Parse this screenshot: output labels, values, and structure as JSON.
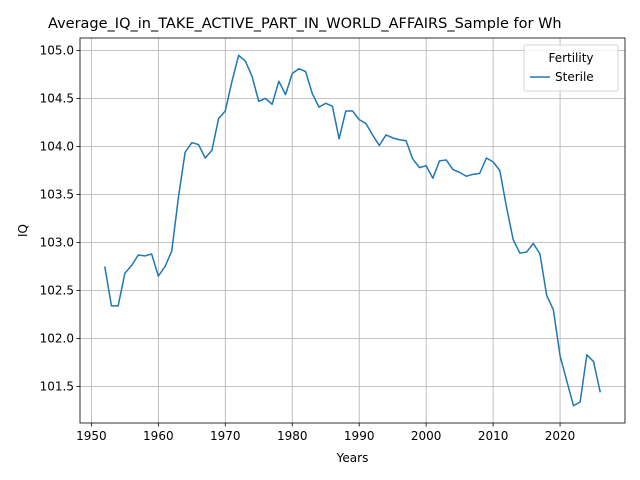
{
  "chart_data": {
    "type": "line",
    "title": "Average_IQ_in_TAKE_ACTIVE_PART_IN_WORLD_AFFAIRS_Sample for Wh",
    "xlabel": "Years",
    "ylabel": "IQ",
    "xlim": [
      1948.3,
      2029.7
    ],
    "ylim": [
      101.12,
      105.13
    ],
    "xticks": [
      1950,
      1960,
      1970,
      1980,
      1990,
      2000,
      2010,
      2020
    ],
    "yticks": [
      101.5,
      102.0,
      102.5,
      103.0,
      103.5,
      104.0,
      104.5,
      105.0
    ],
    "ytick_labels": [
      "101.5",
      "102.0",
      "102.5",
      "103.0",
      "103.5",
      "104.0",
      "104.5",
      "105.0"
    ],
    "grid": true,
    "legend": {
      "title": "Fertility",
      "placement": "top-right"
    },
    "series": [
      {
        "name": "Sterile",
        "color": "#1f77b4",
        "x": [
          1952,
          1953,
          1954,
          1955,
          1956,
          1957,
          1958,
          1959,
          1960,
          1961,
          1962,
          1963,
          1964,
          1965,
          1966,
          1967,
          1968,
          1969,
          1970,
          1971,
          1972,
          1973,
          1974,
          1975,
          1976,
          1977,
          1978,
          1979,
          1980,
          1981,
          1982,
          1983,
          1984,
          1985,
          1986,
          1987,
          1988,
          1989,
          1990,
          1991,
          1992,
          1993,
          1994,
          1995,
          1996,
          1997,
          1998,
          1999,
          2000,
          2001,
          2002,
          2003,
          2004,
          2005,
          2006,
          2007,
          2008,
          2009,
          2010,
          2011,
          2012,
          2013,
          2014,
          2015,
          2016,
          2017,
          2018,
          2019,
          2020,
          2021,
          2022,
          2023,
          2024,
          2025,
          2026
        ],
        "y": [
          102.75,
          102.34,
          102.34,
          102.68,
          102.76,
          102.87,
          102.86,
          102.88,
          102.65,
          102.75,
          102.91,
          103.47,
          103.94,
          104.04,
          104.02,
          103.88,
          103.96,
          104.29,
          104.37,
          104.68,
          104.95,
          104.89,
          104.73,
          104.47,
          104.5,
          104.44,
          104.68,
          104.54,
          104.76,
          104.81,
          104.78,
          104.55,
          104.41,
          104.45,
          104.42,
          104.08,
          104.37,
          104.37,
          104.28,
          104.24,
          104.12,
          104.01,
          104.12,
          104.09,
          104.07,
          104.06,
          103.87,
          103.78,
          103.8,
          103.67,
          103.85,
          103.86,
          103.76,
          103.73,
          103.69,
          103.71,
          103.72,
          103.88,
          103.84,
          103.75,
          103.37,
          103.03,
          102.89,
          102.9,
          102.99,
          102.88,
          102.45,
          102.3,
          101.82,
          101.56,
          101.3,
          101.34,
          101.83,
          101.76,
          101.44
        ]
      }
    ]
  }
}
